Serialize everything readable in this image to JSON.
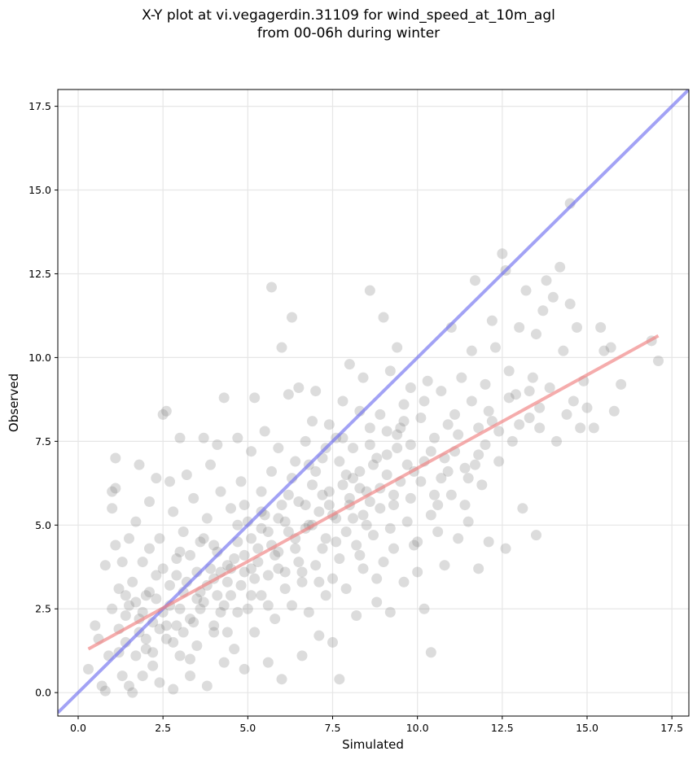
{
  "chart_data": {
    "type": "scatter",
    "title_line1": "X-Y plot at vi.vegagerdin.31109 for wind_speed_at_10m_agl",
    "title_line2": "from 00-06h during winter",
    "xlabel": "Simulated",
    "ylabel": "Observed",
    "xlim": [
      -0.6,
      18.0
    ],
    "ylim": [
      -0.7,
      18.0
    ],
    "xticks": [
      0.0,
      2.5,
      5.0,
      7.5,
      10.0,
      12.5,
      15.0,
      17.5
    ],
    "yticks": [
      0.0,
      2.5,
      5.0,
      7.5,
      10.0,
      12.5,
      15.0,
      17.5
    ],
    "xtick_labels": [
      "0.0",
      "2.5",
      "5.0",
      "7.5",
      "10.0",
      "12.5",
      "15.0",
      "17.5"
    ],
    "ytick_labels": [
      "0.0",
      "2.5",
      "5.0",
      "7.5",
      "10.0",
      "12.5",
      "15.0",
      "17.5"
    ],
    "grid": true,
    "point_color": "#808080",
    "identity_line": {
      "x": [
        -0.6,
        18.0
      ],
      "y": [
        -0.6,
        18.0
      ],
      "color": "#7070f0"
    },
    "fit_line": {
      "x": [
        0.3,
        17.1
      ],
      "y": [
        1.3,
        10.65
      ],
      "color": "#f08080"
    },
    "points": [
      [
        0.3,
        0.7
      ],
      [
        0.5,
        2.0
      ],
      [
        0.6,
        1.6
      ],
      [
        0.7,
        0.2
      ],
      [
        0.8,
        0.05
      ],
      [
        0.8,
        3.8
      ],
      [
        0.9,
        1.1
      ],
      [
        1.0,
        2.5
      ],
      [
        1.0,
        6.0
      ],
      [
        1.1,
        7.0
      ],
      [
        1.1,
        6.1
      ],
      [
        1.0,
        5.5
      ],
      [
        1.1,
        4.4
      ],
      [
        1.2,
        3.1
      ],
      [
        1.2,
        1.9
      ],
      [
        1.3,
        0.5
      ],
      [
        1.3,
        3.9
      ],
      [
        1.4,
        2.3
      ],
      [
        1.4,
        1.5
      ],
      [
        1.5,
        4.6
      ],
      [
        1.5,
        0.2
      ],
      [
        1.6,
        0.0
      ],
      [
        1.6,
        3.3
      ],
      [
        1.7,
        2.7
      ],
      [
        1.7,
        5.1
      ],
      [
        1.8,
        6.8
      ],
      [
        1.8,
        1.8
      ],
      [
        1.9,
        0.5
      ],
      [
        1.9,
        3.9
      ],
      [
        2.0,
        1.3
      ],
      [
        2.0,
        2.9
      ],
      [
        2.1,
        4.3
      ],
      [
        2.1,
        5.7
      ],
      [
        2.2,
        0.8
      ],
      [
        2.2,
        2.1
      ],
      [
        2.3,
        3.5
      ],
      [
        2.3,
        6.4
      ],
      [
        2.4,
        0.3
      ],
      [
        2.4,
        4.6
      ],
      [
        2.5,
        2.4
      ],
      [
        2.5,
        8.3
      ],
      [
        2.6,
        8.4
      ],
      [
        2.6,
        1.6
      ],
      [
        2.7,
        3.2
      ],
      [
        2.7,
        6.3
      ],
      [
        2.8,
        0.1
      ],
      [
        2.8,
        5.4
      ],
      [
        2.9,
        2.0
      ],
      [
        2.9,
        4.0
      ],
      [
        3.0,
        7.6
      ],
      [
        3.0,
        1.1
      ],
      [
        3.1,
        3.0
      ],
      [
        3.1,
        4.8
      ],
      [
        3.2,
        6.5
      ],
      [
        3.3,
        2.2
      ],
      [
        3.3,
        0.5
      ],
      [
        3.4,
        5.8
      ],
      [
        3.5,
        3.6
      ],
      [
        3.5,
        1.4
      ],
      [
        3.6,
        4.5
      ],
      [
        3.7,
        7.6
      ],
      [
        3.7,
        2.7
      ],
      [
        3.8,
        0.2
      ],
      [
        3.8,
        5.2
      ],
      [
        3.9,
        6.8
      ],
      [
        4.0,
        3.4
      ],
      [
        4.0,
        1.8
      ],
      [
        4.1,
        7.4
      ],
      [
        4.1,
        4.2
      ],
      [
        4.2,
        2.4
      ],
      [
        4.2,
        6.0
      ],
      [
        4.3,
        8.8
      ],
      [
        4.3,
        0.9
      ],
      [
        4.4,
        3.8
      ],
      [
        4.5,
        5.5
      ],
      [
        4.5,
        2.9
      ],
      [
        4.6,
        1.3
      ],
      [
        4.7,
        7.6
      ],
      [
        4.7,
        4.5
      ],
      [
        4.8,
        3.2
      ],
      [
        4.8,
        6.3
      ],
      [
        4.9,
        0.7
      ],
      [
        5.0,
        2.5
      ],
      [
        5.0,
        5.1
      ],
      [
        5.1,
        7.2
      ],
      [
        5.1,
        3.7
      ],
      [
        5.2,
        8.8
      ],
      [
        5.2,
        1.8
      ],
      [
        5.3,
        4.3
      ],
      [
        5.4,
        6.0
      ],
      [
        5.4,
        2.9
      ],
      [
        5.5,
        7.8
      ],
      [
        5.5,
        5.3
      ],
      [
        5.6,
        3.5
      ],
      [
        5.6,
        0.9
      ],
      [
        5.7,
        12.1
      ],
      [
        5.7,
        6.6
      ],
      [
        5.8,
        4.1
      ],
      [
        5.8,
        2.2
      ],
      [
        5.9,
        7.3
      ],
      [
        6.0,
        10.3
      ],
      [
        6.0,
        5.6
      ],
      [
        6.0,
        0.4
      ],
      [
        6.1,
        3.6
      ],
      [
        6.2,
        8.9
      ],
      [
        6.2,
        4.8
      ],
      [
        6.3,
        11.2
      ],
      [
        6.3,
        2.6
      ],
      [
        6.4,
        6.9
      ],
      [
        6.4,
        4.3
      ],
      [
        6.5,
        9.1
      ],
      [
        6.5,
        5.7
      ],
      [
        6.6,
        1.1
      ],
      [
        6.6,
        3.3
      ],
      [
        6.7,
        7.5
      ],
      [
        6.8,
        5.0
      ],
      [
        6.8,
        2.4
      ],
      [
        6.9,
        8.1
      ],
      [
        6.9,
        6.2
      ],
      [
        7.0,
        3.8
      ],
      [
        7.0,
        9.0
      ],
      [
        7.1,
        5.4
      ],
      [
        7.1,
        1.7
      ],
      [
        7.2,
        7.0
      ],
      [
        7.3,
        4.6
      ],
      [
        7.3,
        2.9
      ],
      [
        7.4,
        8.0
      ],
      [
        7.4,
        6.0
      ],
      [
        7.5,
        3.4
      ],
      [
        7.5,
        1.5
      ],
      [
        7.6,
        7.6
      ],
      [
        7.6,
        5.2
      ],
      [
        7.7,
        0.4
      ],
      [
        7.7,
        4.0
      ],
      [
        7.8,
        8.7
      ],
      [
        7.9,
        6.5
      ],
      [
        7.9,
        3.1
      ],
      [
        8.0,
        9.8
      ],
      [
        8.0,
        5.6
      ],
      [
        8.1,
        7.3
      ],
      [
        8.2,
        4.4
      ],
      [
        8.2,
        2.3
      ],
      [
        8.3,
        8.4
      ],
      [
        8.3,
        6.1
      ],
      [
        8.4,
        9.4
      ],
      [
        8.4,
        3.7
      ],
      [
        8.5,
        5.0
      ],
      [
        8.6,
        7.9
      ],
      [
        8.6,
        12.0
      ],
      [
        8.7,
        4.7
      ],
      [
        8.7,
        6.8
      ],
      [
        8.8,
        2.7
      ],
      [
        8.9,
        8.3
      ],
      [
        8.9,
        5.5
      ],
      [
        9.0,
        11.2
      ],
      [
        9.0,
        3.9
      ],
      [
        9.1,
        7.1
      ],
      [
        9.2,
        9.6
      ],
      [
        9.2,
        2.4
      ],
      [
        9.3,
        5.9
      ],
      [
        9.3,
        4.3
      ],
      [
        9.4,
        10.3
      ],
      [
        9.4,
        7.7
      ],
      [
        9.5,
        6.3
      ],
      [
        9.6,
        3.3
      ],
      [
        9.6,
        8.6
      ],
      [
        9.7,
        5.1
      ],
      [
        9.8,
        7.4
      ],
      [
        9.8,
        9.1
      ],
      [
        9.9,
        6.6
      ],
      [
        10.0,
        3.6
      ],
      [
        10.0,
        4.5
      ],
      [
        10.1,
        8.2
      ],
      [
        10.2,
        2.5
      ],
      [
        10.2,
        6.9
      ],
      [
        10.3,
        9.3
      ],
      [
        10.4,
        5.3
      ],
      [
        10.4,
        1.2
      ],
      [
        10.5,
        7.6
      ],
      [
        10.6,
        4.8
      ],
      [
        10.7,
        9.0
      ],
      [
        10.7,
        6.4
      ],
      [
        10.8,
        3.8
      ],
      [
        10.9,
        8.0
      ],
      [
        11.0,
        5.9
      ],
      [
        11.0,
        10.9
      ],
      [
        11.1,
        7.2
      ],
      [
        11.2,
        4.6
      ],
      [
        11.3,
        9.4
      ],
      [
        11.4,
        6.7
      ],
      [
        11.5,
        5.1
      ],
      [
        11.6,
        8.7
      ],
      [
        11.6,
        10.2
      ],
      [
        11.7,
        12.3
      ],
      [
        11.8,
        3.7
      ],
      [
        11.8,
        7.9
      ],
      [
        11.9,
        6.2
      ],
      [
        12.0,
        9.2
      ],
      [
        12.1,
        4.5
      ],
      [
        12.2,
        8.1
      ],
      [
        12.2,
        11.1
      ],
      [
        12.3,
        10.3
      ],
      [
        12.4,
        6.9
      ],
      [
        12.5,
        13.1
      ],
      [
        12.6,
        12.6
      ],
      [
        12.6,
        4.3
      ],
      [
        12.7,
        9.6
      ],
      [
        12.8,
        7.5
      ],
      [
        12.9,
        8.9
      ],
      [
        13.0,
        10.9
      ],
      [
        13.1,
        5.5
      ],
      [
        13.2,
        12.0
      ],
      [
        13.3,
        8.2
      ],
      [
        13.4,
        9.4
      ],
      [
        13.5,
        4.7
      ],
      [
        13.5,
        10.7
      ],
      [
        13.6,
        7.9
      ],
      [
        13.7,
        11.4
      ],
      [
        13.8,
        12.3
      ],
      [
        13.9,
        9.1
      ],
      [
        14.0,
        11.8
      ],
      [
        14.1,
        7.5
      ],
      [
        14.2,
        12.7
      ],
      [
        14.3,
        10.2
      ],
      [
        14.4,
        8.3
      ],
      [
        14.5,
        14.6
      ],
      [
        14.5,
        11.6
      ],
      [
        14.6,
        8.7
      ],
      [
        14.7,
        10.9
      ],
      [
        14.8,
        7.9
      ],
      [
        14.9,
        9.3
      ],
      [
        15.0,
        8.5
      ],
      [
        15.2,
        7.9
      ],
      [
        15.4,
        10.9
      ],
      [
        15.5,
        10.2
      ],
      [
        15.7,
        10.3
      ],
      [
        15.8,
        8.4
      ],
      [
        16.0,
        9.2
      ],
      [
        17.1,
        9.9
      ],
      [
        16.9,
        10.5
      ],
      [
        2.0,
        1.6
      ],
      [
        2.3,
        2.8
      ],
      [
        2.6,
        2.0
      ],
      [
        3.0,
        2.5
      ],
      [
        3.2,
        3.3
      ],
      [
        3.4,
        2.1
      ],
      [
        3.6,
        3.0
      ],
      [
        3.9,
        3.7
      ],
      [
        4.1,
        2.9
      ],
      [
        4.4,
        3.3
      ],
      [
        4.6,
        4.0
      ],
      [
        4.9,
        3.6
      ],
      [
        5.1,
        4.6
      ],
      [
        5.3,
        3.9
      ],
      [
        5.6,
        4.8
      ],
      [
        5.9,
        4.2
      ],
      [
        6.1,
        5.1
      ],
      [
        6.4,
        4.6
      ],
      [
        6.7,
        5.6
      ],
      [
        6.9,
        5.0
      ],
      [
        7.2,
        5.9
      ],
      [
        7.5,
        5.3
      ],
      [
        7.8,
        6.2
      ],
      [
        8.0,
        5.8
      ],
      [
        8.3,
        6.6
      ],
      [
        8.5,
        6.0
      ],
      [
        8.8,
        7.0
      ],
      [
        9.1,
        6.5
      ],
      [
        9.4,
        7.3
      ],
      [
        9.7,
        6.8
      ],
      [
        1.5,
        2.6
      ],
      [
        1.8,
        2.2
      ],
      [
        2.1,
        3.0
      ],
      [
        2.4,
        1.9
      ],
      [
        2.7,
        2.6
      ],
      [
        2.9,
        3.5
      ],
      [
        3.1,
        1.8
      ],
      [
        3.3,
        4.1
      ],
      [
        3.6,
        2.5
      ],
      [
        3.8,
        3.2
      ],
      [
        4.0,
        4.4
      ],
      [
        4.3,
        2.6
      ],
      [
        4.5,
        3.7
      ],
      [
        4.7,
        5.0
      ],
      [
        4.9,
        4.1
      ],
      [
        5.2,
        3.4
      ],
      [
        5.4,
        5.4
      ],
      [
        5.7,
        4.4
      ],
      [
        5.9,
        3.7
      ],
      [
        6.2,
        5.9
      ],
      [
        6.5,
        3.9
      ],
      [
        6.7,
        4.9
      ],
      [
        7.0,
        6.6
      ],
      [
        7.2,
        4.3
      ],
      [
        7.4,
        5.6
      ],
      [
        7.7,
        6.9
      ],
      [
        7.9,
        4.8
      ],
      [
        8.1,
        6.4
      ],
      [
        8.4,
        5.3
      ],
      [
        8.6,
        7.4
      ],
      [
        8.9,
        6.1
      ],
      [
        9.2,
        4.9
      ],
      [
        9.5,
        7.9
      ],
      [
        9.8,
        5.8
      ],
      [
        10.1,
        6.3
      ],
      [
        10.4,
        7.2
      ],
      [
        10.6,
        5.6
      ],
      [
        10.9,
        6.6
      ],
      [
        11.2,
        7.7
      ],
      [
        11.5,
        6.4
      ],
      [
        11.8,
        7.1
      ],
      [
        12.1,
        8.4
      ],
      [
        12.4,
        7.8
      ],
      [
        12.7,
        8.8
      ],
      [
        13.0,
        8.0
      ],
      [
        13.3,
        9.0
      ],
      [
        13.6,
        8.5
      ],
      [
        1.2,
        1.2
      ],
      [
        1.4,
        2.9
      ],
      [
        1.7,
        1.1
      ],
      [
        1.9,
        2.4
      ],
      [
        2.2,
        1.2
      ],
      [
        2.5,
        3.7
      ],
      [
        2.8,
        1.5
      ],
      [
        3.0,
        4.2
      ],
      [
        3.3,
        1.0
      ],
      [
        3.5,
        2.8
      ],
      [
        3.7,
        4.6
      ],
      [
        4.0,
        2.0
      ],
      [
        4.2,
        3.6
      ],
      [
        4.4,
        1.8
      ],
      [
        4.7,
        2.4
      ],
      [
        4.9,
        5.6
      ],
      [
        5.1,
        2.9
      ],
      [
        5.4,
        4.9
      ],
      [
        5.6,
        2.6
      ],
      [
        5.9,
        5.2
      ],
      [
        6.1,
        3.1
      ],
      [
        6.3,
        6.4
      ],
      [
        6.6,
        3.6
      ],
      [
        6.8,
        6.8
      ],
      [
        7.1,
        3.3
      ],
      [
        7.3,
        7.3
      ],
      [
        7.6,
        4.5
      ],
      [
        7.8,
        7.6
      ],
      [
        8.1,
        5.2
      ],
      [
        8.3,
        4.1
      ],
      [
        8.6,
        5.7
      ],
      [
        8.8,
        3.4
      ],
      [
        9.1,
        7.8
      ],
      [
        9.3,
        5.6
      ],
      [
        9.6,
        8.1
      ],
      [
        9.9,
        4.4
      ],
      [
        10.2,
        8.7
      ],
      [
        10.5,
        5.9
      ],
      [
        10.8,
        7.0
      ],
      [
        11.1,
        8.3
      ],
      [
        11.4,
        5.6
      ],
      [
        11.7,
        6.8
      ],
      [
        12.0,
        7.4
      ]
    ]
  }
}
